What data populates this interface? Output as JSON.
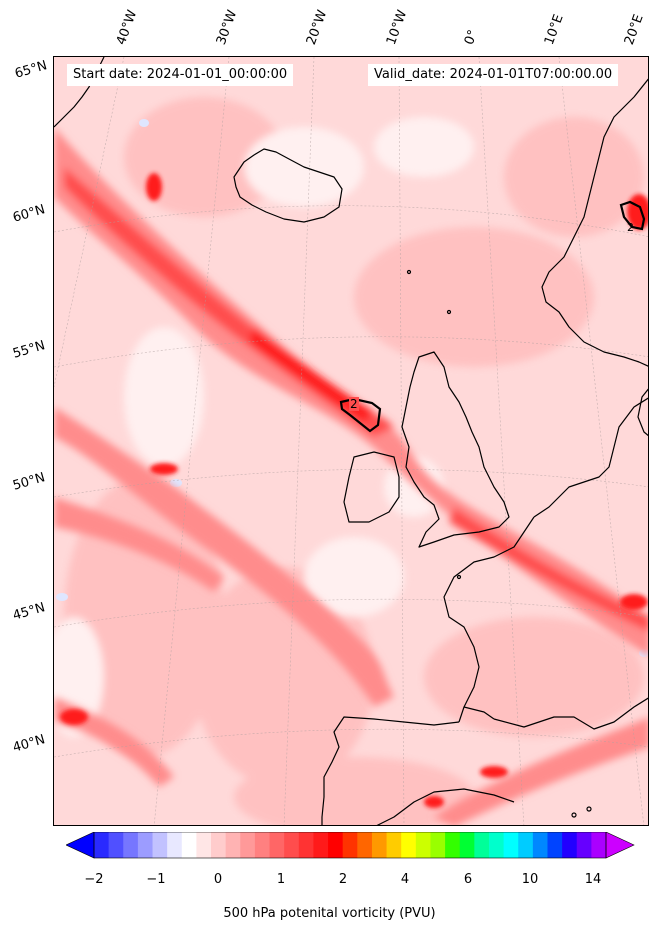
{
  "header": {
    "start_date": "Start date: 2024-01-01_00:00:00",
    "valid_date": "Valid_date: 2024-01-01T07:00:00.00"
  },
  "map": {
    "longitude_labels": [
      "40°W",
      "30°W",
      "20°W",
      "10°W",
      "0°",
      "10°E",
      "20°E"
    ],
    "latitude_labels": [
      "65°N",
      "60°N",
      "55°N",
      "50°N",
      "45°N",
      "40°N"
    ],
    "contour_labels": [
      "2",
      "2"
    ],
    "field_colors": {
      "background": "#ffd9d9",
      "light": "#ffbfbf",
      "medium": "#ff8c8c",
      "strong": "#ff4d4d",
      "peak": "#ff1a1a",
      "negative": "#e8eeff",
      "coast": "#000000"
    }
  },
  "colorbar": {
    "ticks": [
      "−2",
      "−1",
      "0",
      "1",
      "2",
      "4",
      "6",
      "10",
      "14"
    ],
    "label": "500 hPa potenital vorticity (PVU)",
    "colors": [
      "#0000ff",
      "#2a2aff",
      "#5050ff",
      "#7676ff",
      "#9c9cff",
      "#c2c2ff",
      "#e8e8ff",
      "#ffffff",
      "#ffe6e6",
      "#ffcccc",
      "#ffb3b3",
      "#ff9999",
      "#ff8080",
      "#ff6666",
      "#ff4d4d",
      "#ff3333",
      "#ff1a1a",
      "#ff0000",
      "#ff3300",
      "#ff6600",
      "#ff9900",
      "#ffcc00",
      "#ffff00",
      "#ccff00",
      "#99ff00",
      "#33ff00",
      "#00ff33",
      "#00ff99",
      "#00ffcc",
      "#00ffff",
      "#00ccff",
      "#0088ff",
      "#0044ff",
      "#2200ff",
      "#6600ff",
      "#aa00ff",
      "#cc00ff"
    ]
  }
}
